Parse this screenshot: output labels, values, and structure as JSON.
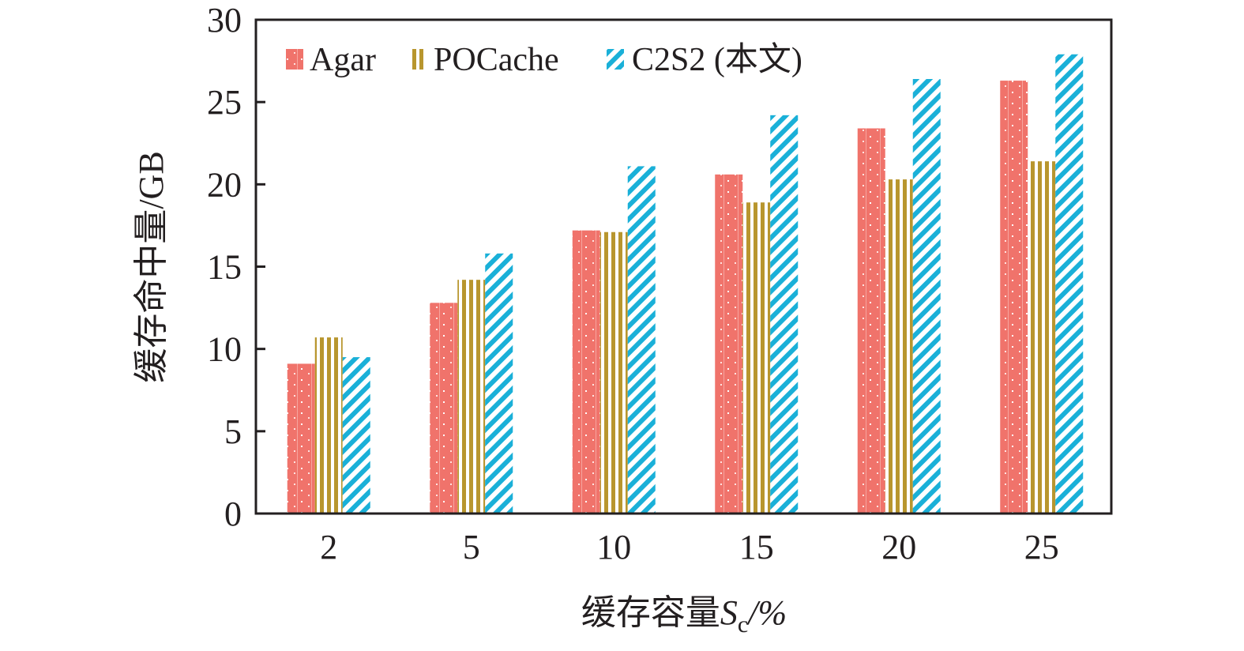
{
  "chart_data": {
    "type": "bar",
    "title": "",
    "xlabel": "缓存容量",
    "xlabel_var": "S",
    "xlabel_sub": "c",
    "xlabel_unit": "/%",
    "ylabel": "缓存命中量/GB",
    "ylim": [
      0,
      30
    ],
    "yticks": [
      "0",
      "5",
      "10",
      "15",
      "20",
      "25",
      "30"
    ],
    "categories": [
      "2",
      "5",
      "10",
      "15",
      "20",
      "25"
    ],
    "legend_position": "top-left",
    "grid": false,
    "series": [
      {
        "name": "Agar",
        "color": "#f0736b",
        "pattern": "dots",
        "values": [
          9.1,
          12.8,
          17.2,
          20.6,
          23.4,
          26.3
        ]
      },
      {
        "name": "POCache",
        "color": "#b8962e",
        "pattern": "vertical-lines",
        "values": [
          10.7,
          14.2,
          17.1,
          18.9,
          20.3,
          21.4
        ]
      },
      {
        "name": "C2S2 (本文)",
        "color": "#1ab0d8",
        "pattern": "diagonal-lines",
        "values": [
          9.5,
          15.8,
          21.1,
          24.2,
          26.4,
          27.9
        ]
      }
    ]
  }
}
